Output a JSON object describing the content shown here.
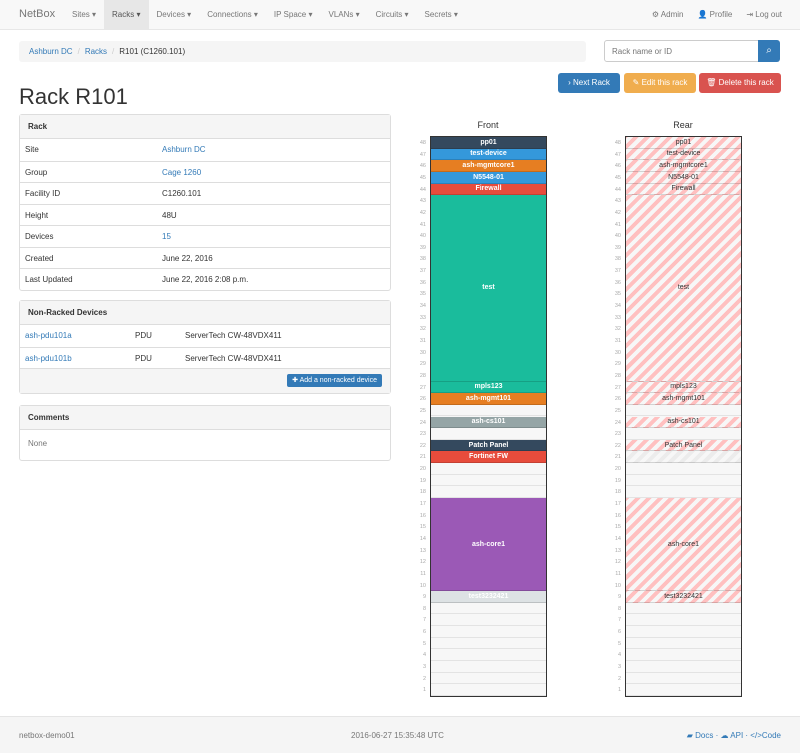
{
  "nav": {
    "brand": "NetBox",
    "menu": [
      "Sites ▾",
      "Racks ▾",
      "Devices ▾",
      "Connections ▾",
      "IP Space ▾",
      "VLANs ▾",
      "Circuits ▾",
      "Secrets ▾"
    ],
    "active": 1,
    "admin": "Admin",
    "profile": "Profile",
    "logout": "Log out"
  },
  "breadcrumb": [
    "Ashburn DC",
    "Racks",
    "R101 (C1260.101)"
  ],
  "search": {
    "placeholder": "Rack name or ID"
  },
  "buttons": {
    "next": "Next Rack",
    "edit": "Edit this rack",
    "delete": "Delete this rack"
  },
  "title": "Rack R101",
  "rack_panel": {
    "heading": "Rack",
    "rows": [
      {
        "k": "Site",
        "v": "Ashburn DC",
        "link": true
      },
      {
        "k": "Group",
        "v": "Cage 1260",
        "link": true
      },
      {
        "k": "Facility ID",
        "v": "C1260.101"
      },
      {
        "k": "Height",
        "v": "48U"
      },
      {
        "k": "Devices",
        "v": "15",
        "link": true
      },
      {
        "k": "Created",
        "v": "June 22, 2016"
      },
      {
        "k": "Last Updated",
        "v": "June 22, 2016 2:08 p.m."
      }
    ]
  },
  "nonracked": {
    "heading": "Non-Racked Devices",
    "rows": [
      {
        "name": "ash-pdu101a",
        "role": "PDU",
        "type": "ServerTech CW-48VDX411"
      },
      {
        "name": "ash-pdu101b",
        "role": "PDU",
        "type": "ServerTech CW-48VDX411"
      }
    ],
    "add": "Add a non-racked device"
  },
  "comments": {
    "heading": "Comments",
    "body": "None"
  },
  "rack": {
    "front_label": "Front",
    "rear_label": "Rear",
    "units": 48,
    "devices": [
      {
        "name": "pp01",
        "pos": 48,
        "h": 1,
        "color": "#34495e",
        "rear": true
      },
      {
        "name": "test-device",
        "pos": 47,
        "h": 1,
        "color": "#3498db",
        "rear": true
      },
      {
        "name": "ash-mgmtcore1",
        "pos": 46,
        "h": 1,
        "color": "#e67e22",
        "rear": true
      },
      {
        "name": "N5548-01",
        "pos": 45,
        "h": 1,
        "color": "#3498db",
        "rear": true
      },
      {
        "name": "Firewall",
        "pos": 44,
        "h": 1,
        "color": "#e74c3c",
        "rear": true
      },
      {
        "name": "test",
        "pos": 28,
        "h": 16,
        "color": "#1abc9c",
        "rear": true
      },
      {
        "name": "mpls123",
        "pos": 27,
        "h": 1,
        "color": "#1abc9c",
        "rear": true
      },
      {
        "name": "ash-mgmt101",
        "pos": 26,
        "h": 1,
        "color": "#e67e22",
        "rear": true
      },
      {
        "name": "ash-cs101",
        "pos": 24,
        "h": 1,
        "color": "#95a5a6",
        "rear": true
      },
      {
        "name": "Patch Panel",
        "pos": 22,
        "h": 1,
        "color": "#34495e",
        "rear": true
      },
      {
        "name": "Fortinet FW",
        "pos": 21,
        "h": 1,
        "color": "#e74c3c",
        "rear": false
      },
      {
        "name": "ash-core1",
        "pos": 10,
        "h": 8,
        "color": "#9b59b6",
        "rear": true
      },
      {
        "name": "test3232421",
        "pos": 9,
        "h": 1,
        "color": "#dde2e4",
        "rear": true
      }
    ]
  },
  "footer": {
    "host": "netbox-demo01",
    "time": "2016-06-27 15:35:48 UTC",
    "docs": "Docs",
    "api": "API",
    "code": "Code"
  }
}
